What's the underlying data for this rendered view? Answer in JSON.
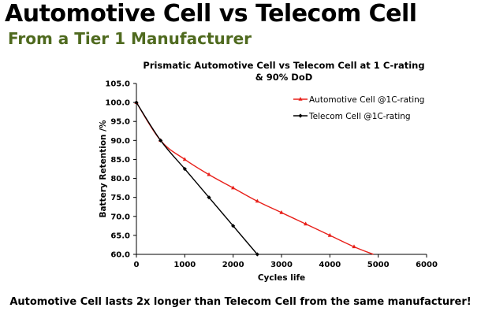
{
  "header": {
    "title": "Automotive Cell vs Telecom Cell",
    "subtitle": "From a Tier 1 Manufacturer"
  },
  "footer": {
    "caption": "Automotive Cell lasts 2x longer than Telecom Cell from the same manufacturer!"
  },
  "chart_data": {
    "type": "line",
    "title": "Prismatic Automotive Cell vs Telecom Cell at 1 C-rating & 90% DoD",
    "xlabel": "Cycles life",
    "ylabel": "Battery Retention /%",
    "xlim": [
      0,
      6000
    ],
    "ylim": [
      60,
      105
    ],
    "xticks": [
      0,
      1000,
      2000,
      3000,
      4000,
      5000,
      6000
    ],
    "yticks": [
      "60.0",
      "65.0",
      "70.0",
      "75.0",
      "80.0",
      "85.0",
      "90.0",
      "95.0",
      "100.0",
      "105.0"
    ],
    "legend_position": "top-right",
    "series": [
      {
        "name": "Automotive Cell @1C-rating",
        "color": "#e8201a",
        "marker": "triangle",
        "x": [
          0,
          500,
          1000,
          1500,
          2000,
          2500,
          3000,
          3500,
          4000,
          4500,
          4900
        ],
        "y": [
          100,
          90,
          85,
          81,
          77.5,
          74,
          71,
          68,
          65,
          62,
          60
        ]
      },
      {
        "name": "Telecom Cell @1C-rating",
        "color": "#000000",
        "marker": "diamond",
        "x": [
          0,
          500,
          1000,
          1500,
          2000,
          2500
        ],
        "y": [
          100,
          90,
          82.5,
          75,
          67.5,
          60
        ]
      }
    ]
  }
}
